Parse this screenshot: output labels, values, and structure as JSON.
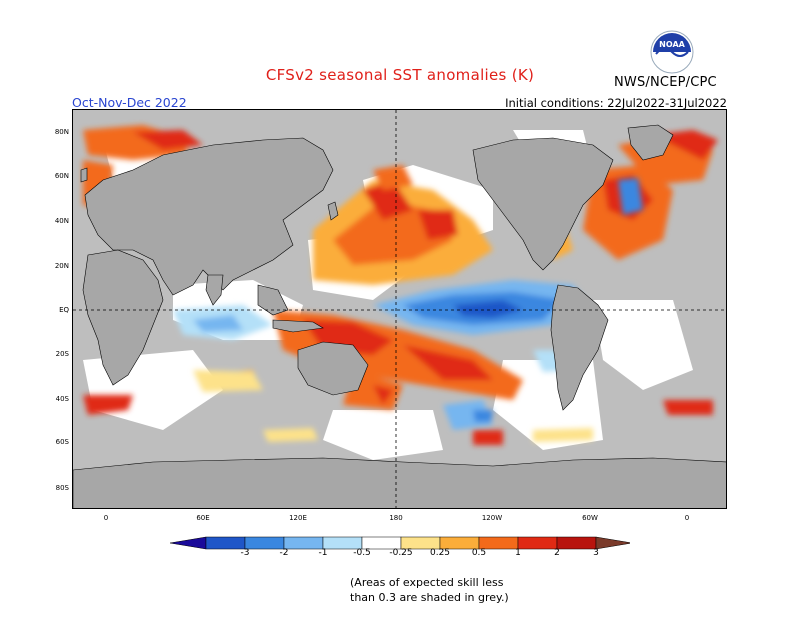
{
  "header": {
    "title": "CFSv2 seasonal SST anomalies (K)",
    "season": "Oct-Nov-Dec 2022",
    "initial_conditions": "Initial conditions: 22Jul2022-31Jul2022",
    "agency": "NWS/NCEP/CPC",
    "logo_text": "NOAA"
  },
  "map": {
    "lat_labels": [
      "80N",
      "60N",
      "40N",
      "20N",
      "EQ",
      "20S",
      "40S",
      "60S",
      "80S"
    ],
    "lon_labels": [
      "0",
      "60E",
      "120E",
      "180",
      "120W",
      "60W",
      "0"
    ],
    "colors": {
      "land": "#a7a7a7",
      "skill_mask": "#bebebe",
      "ocean_neutral": "#ffffff"
    }
  },
  "colorbar": {
    "ticks": [
      "-3",
      "-2",
      "-1",
      "-0.5",
      "-0.25",
      "0.25",
      "0.5",
      "1",
      "2",
      "3"
    ],
    "colors": [
      "#1a0a9a",
      "#1f56c8",
      "#3a87e0",
      "#76b6f0",
      "#b4e0f8",
      "#ffffff",
      "#fde28a",
      "#fbad3a",
      "#f36a1a",
      "#e02a14",
      "#b8140e",
      "#7a3a2a"
    ]
  },
  "note": {
    "line1": "(Areas of expected skill less",
    "line2": "than 0.3 are shaded in grey.)"
  }
}
